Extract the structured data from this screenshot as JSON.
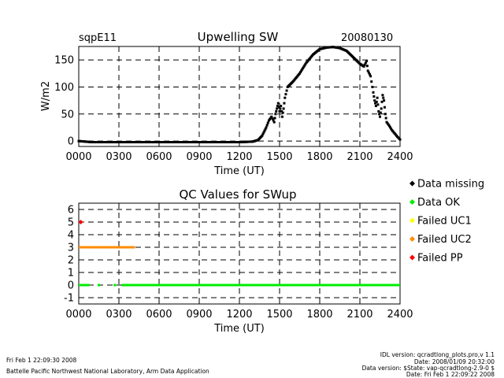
{
  "site": "sqpE11",
  "date": "20080130",
  "footer": {
    "left_line1": "Fri Feb  1 22:09:30 2008",
    "left_line2": "Battelle Pacific Northwest National Laboratory, Arm Data Application",
    "right_line1": "IDL version: qcradtlong_plots.pro,v 1.1",
    "right_line2": "Date: 2008/01/09 20:32:00",
    "right_line3": "Data version: $State: vap-qcradtlong-2.9-0 $",
    "right_line4": "Date: Fri Feb  1 22:09:22 2008"
  },
  "colors": {
    "missing": "#000000",
    "ok": "#00ee00",
    "failed_uc1": "#ffff00",
    "failed_uc2": "#ff8c00",
    "failed_pp": "#ff0000"
  },
  "chart_data": [
    {
      "type": "scatter",
      "title": "Upwelling SW",
      "xlabel": "Time (UT)",
      "ylabel": "W/m2",
      "xlim": [
        0,
        2400
      ],
      "ylim": [
        -10,
        175
      ],
      "x_ticks": [
        "0000",
        "0300",
        "0600",
        "0900",
        "1200",
        "1500",
        "1800",
        "2100",
        "2400"
      ],
      "y_ticks": [
        0,
        50,
        100,
        150
      ],
      "grid": true,
      "series": [
        {
          "points": [
            [
              0,
              0
            ],
            [
              50,
              -1
            ],
            [
              100,
              -2
            ],
            [
              200,
              -2
            ],
            [
              300,
              -2
            ],
            [
              400,
              -2
            ],
            [
              600,
              -2
            ],
            [
              800,
              -2
            ],
            [
              1000,
              -2
            ],
            [
              1200,
              -2
            ],
            [
              1300,
              -1
            ],
            [
              1340,
              2
            ],
            [
              1370,
              10
            ],
            [
              1400,
              25
            ],
            [
              1420,
              38
            ],
            [
              1440,
              45
            ],
            [
              1460,
              35
            ],
            [
              1470,
              50
            ],
            [
              1480,
              60
            ],
            [
              1490,
              70
            ],
            [
              1500,
              55
            ],
            [
              1510,
              65
            ],
            [
              1520,
              45
            ],
            [
              1530,
              60
            ],
            [
              1540,
              80
            ],
            [
              1560,
              100
            ],
            [
              1600,
              110
            ],
            [
              1650,
              125
            ],
            [
              1700,
              145
            ],
            [
              1750,
              160
            ],
            [
              1800,
              170
            ],
            [
              1850,
              173
            ],
            [
              1900,
              174
            ],
            [
              1950,
              172
            ],
            [
              2000,
              167
            ],
            [
              2050,
              155
            ],
            [
              2100,
              143
            ],
            [
              2130,
              138
            ],
            [
              2150,
              148
            ],
            [
              2160,
              130
            ],
            [
              2180,
              120
            ],
            [
              2200,
              90
            ],
            [
              2210,
              75
            ],
            [
              2220,
              65
            ],
            [
              2230,
              80
            ],
            [
              2240,
              55
            ],
            [
              2250,
              45
            ],
            [
              2260,
              60
            ],
            [
              2270,
              85
            ],
            [
              2280,
              75
            ],
            [
              2290,
              50
            ],
            [
              2300,
              35
            ],
            [
              2320,
              28
            ],
            [
              2340,
              20
            ],
            [
              2360,
              14
            ],
            [
              2380,
              8
            ],
            [
              2400,
              3
            ]
          ]
        }
      ]
    },
    {
      "type": "scatter",
      "title": "QC Values for SWup",
      "xlabel": "Time (UT)",
      "ylabel": "",
      "xlim": [
        0,
        2400
      ],
      "ylim": [
        -1.5,
        6.5
      ],
      "x_ticks": [
        "0000",
        "0300",
        "0600",
        "0900",
        "1200",
        "1500",
        "1800",
        "2100",
        "2400"
      ],
      "y_ticks": [
        -1,
        0,
        1,
        2,
        3,
        4,
        5,
        6
      ],
      "grid": true,
      "legend": {
        "placement": "right",
        "entries": [
          "Data missing",
          "Data OK",
          "Failed UC1",
          "Failed UC2",
          "Failed PP"
        ]
      },
      "series": [
        {
          "name": "Data missing",
          "segments": []
        },
        {
          "name": "Data OK",
          "y": 0,
          "segments": [
            [
              0,
              80
            ],
            [
              140,
              160
            ],
            [
              260,
              280
            ],
            [
              320,
              2400
            ]
          ]
        },
        {
          "name": "Failed UC1",
          "y": 1,
          "segments": []
        },
        {
          "name": "Failed UC2",
          "y": 3,
          "segments": [
            [
              0,
              420
            ]
          ]
        },
        {
          "name": "Failed PP",
          "y": 5,
          "segments": [
            [
              15,
              15
            ]
          ]
        }
      ]
    }
  ]
}
